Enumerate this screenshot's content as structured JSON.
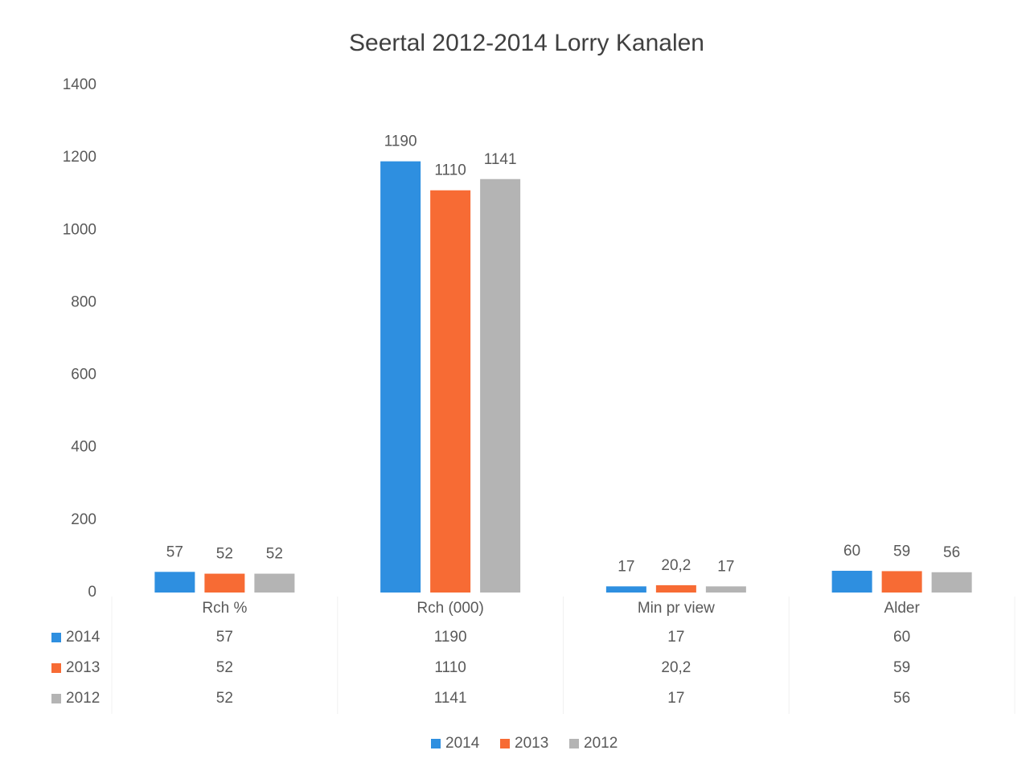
{
  "chart_data": {
    "type": "bar",
    "title": "Seertal 2012-2014 Lorry Kanalen",
    "categories": [
      "Rch %",
      "Rch (000)",
      "Min pr view",
      "Alder"
    ],
    "series": [
      {
        "name": "2014",
        "color": "#2e8fe0",
        "values": [
          57,
          1190,
          17,
          60
        ],
        "value_labels": [
          "57",
          "1190",
          "17",
          "60"
        ]
      },
      {
        "name": "2013",
        "color": "#f76b34",
        "values": [
          52,
          1110,
          20.2,
          59
        ],
        "value_labels": [
          "52",
          "1110",
          "20,2",
          "59"
        ]
      },
      {
        "name": "2012",
        "color": "#b4b4b4",
        "values": [
          52,
          1141,
          17,
          56
        ],
        "value_labels": [
          "52",
          "1141",
          "17",
          "56"
        ]
      }
    ],
    "ylim": [
      0,
      1400
    ],
    "yticks": [
      0,
      200,
      400,
      600,
      800,
      1000,
      1200,
      1400
    ],
    "grid": false,
    "legend": "bottom",
    "data_table": true
  }
}
